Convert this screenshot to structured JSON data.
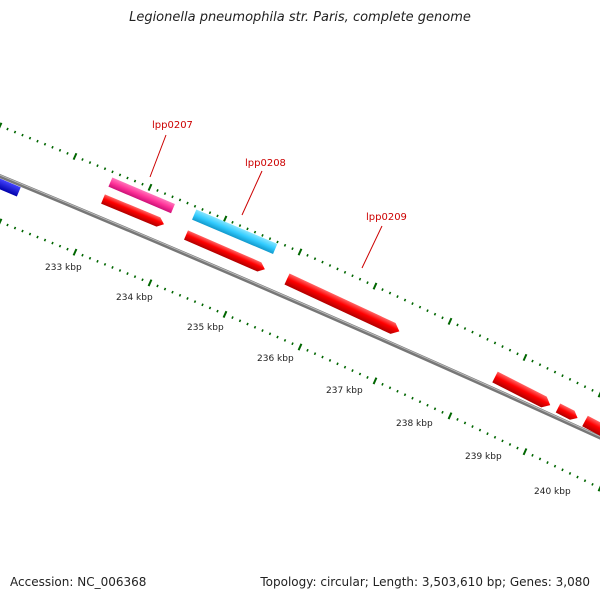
{
  "title": "Legionella pneumophila str. Paris, complete genome",
  "footer": {
    "accession": "Accession: NC_006368",
    "summary": "Topology: circular; Length: 3,503,610 bp; Genes: 3,080"
  },
  "ticks": [
    {
      "label": "233 kbp"
    },
    {
      "label": "234 kbp"
    },
    {
      "label": "235 kbp"
    },
    {
      "label": "236 kbp"
    },
    {
      "label": "237 kbp"
    },
    {
      "label": "238 kbp"
    },
    {
      "label": "239 kbp"
    },
    {
      "label": "240 kbp"
    }
  ],
  "gene_labels": [
    {
      "label": "lpp0207"
    },
    {
      "label": "lpp0208"
    },
    {
      "label": "lpp0209"
    }
  ],
  "colors": {
    "forward_gene": "#ff0000",
    "reverse_gene": "#ff0000",
    "highlight_magenta": "#ff3399",
    "highlight_cyan": "#33ccff",
    "blue_gene": "#0000ee",
    "backbone": "#888888",
    "tick": "#006600"
  }
}
